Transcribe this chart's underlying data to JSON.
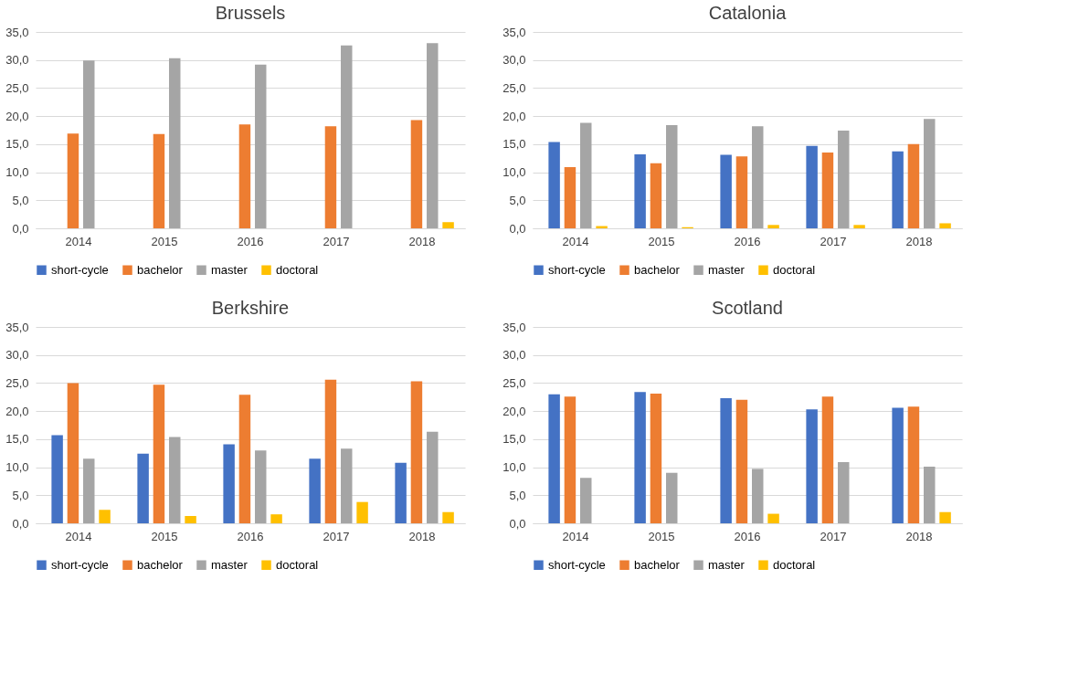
{
  "chart_data": [
    {
      "type": "bar",
      "title": "Brussels",
      "categories": [
        "2014",
        "2015",
        "2016",
        "2017",
        "2018"
      ],
      "series": [
        {
          "name": "short-cycle",
          "color": "#4472c4",
          "values": [
            null,
            null,
            null,
            null,
            null
          ]
        },
        {
          "name": "bachelor",
          "color": "#ed7d31",
          "values": [
            16.9,
            16.8,
            18.5,
            18.2,
            19.3
          ]
        },
        {
          "name": "master",
          "color": "#a5a5a5",
          "values": [
            29.9,
            30.3,
            29.2,
            32.6,
            33.0
          ]
        },
        {
          "name": "doctoral",
          "color": "#ffc000",
          "values": [
            null,
            null,
            null,
            null,
            1.1
          ]
        }
      ],
      "ylim": [
        0,
        35
      ],
      "yticks": [
        {
          "value": 0,
          "label": "0,0"
        },
        {
          "value": 5,
          "label": "5,0"
        },
        {
          "value": 10,
          "label": "10,0"
        },
        {
          "value": 15,
          "label": "15,0"
        },
        {
          "value": 20,
          "label": "20,0"
        },
        {
          "value": 25,
          "label": "25,0"
        },
        {
          "value": 30,
          "label": "30,0"
        },
        {
          "value": 35,
          "label": "35,0"
        }
      ],
      "grid": "y",
      "legend": "bottom"
    },
    {
      "type": "bar",
      "title": "Catalonia",
      "categories": [
        "2014",
        "2015",
        "2016",
        "2017",
        "2018"
      ],
      "series": [
        {
          "name": "short-cycle",
          "color": "#4472c4",
          "values": [
            15.4,
            13.2,
            13.1,
            14.7,
            13.7
          ]
        },
        {
          "name": "bachelor",
          "color": "#ed7d31",
          "values": [
            10.9,
            11.6,
            12.8,
            13.5,
            15.0
          ]
        },
        {
          "name": "master",
          "color": "#a5a5a5",
          "values": [
            18.8,
            18.4,
            18.2,
            17.4,
            19.5
          ]
        },
        {
          "name": "doctoral",
          "color": "#ffc000",
          "values": [
            0.4,
            0.2,
            0.6,
            0.6,
            0.9
          ]
        }
      ],
      "ylim": [
        0,
        35
      ],
      "yticks": [
        {
          "value": 0,
          "label": "0,0"
        },
        {
          "value": 5,
          "label": "5,0"
        },
        {
          "value": 10,
          "label": "10,0"
        },
        {
          "value": 15,
          "label": "15,0"
        },
        {
          "value": 20,
          "label": "20,0"
        },
        {
          "value": 25,
          "label": "25,0"
        },
        {
          "value": 30,
          "label": "30,0"
        },
        {
          "value": 35,
          "label": "35,0"
        }
      ],
      "grid": "y",
      "legend": "bottom"
    },
    {
      "type": "bar",
      "title": "Berkshire",
      "categories": [
        "2014",
        "2015",
        "2016",
        "2017",
        "2018"
      ],
      "series": [
        {
          "name": "short-cycle",
          "color": "#4472c4",
          "values": [
            15.7,
            12.4,
            14.1,
            11.5,
            10.8
          ]
        },
        {
          "name": "bachelor",
          "color": "#ed7d31",
          "values": [
            25.0,
            24.7,
            22.9,
            25.6,
            25.3
          ]
        },
        {
          "name": "master",
          "color": "#a5a5a5",
          "values": [
            11.5,
            15.4,
            13.0,
            13.3,
            16.3
          ]
        },
        {
          "name": "doctoral",
          "color": "#ffc000",
          "values": [
            2.4,
            1.3,
            1.6,
            3.8,
            2.0
          ]
        }
      ],
      "ylim": [
        0,
        35
      ],
      "yticks": [
        {
          "value": 0,
          "label": "0,0"
        },
        {
          "value": 5,
          "label": "5,0"
        },
        {
          "value": 10,
          "label": "10,0"
        },
        {
          "value": 15,
          "label": "15,0"
        },
        {
          "value": 20,
          "label": "20,0"
        },
        {
          "value": 25,
          "label": "25,0"
        },
        {
          "value": 30,
          "label": "30,0"
        },
        {
          "value": 35,
          "label": "35,0"
        }
      ],
      "grid": "y",
      "legend": "bottom"
    },
    {
      "type": "bar",
      "title": "Scotland",
      "categories": [
        "2014",
        "2015",
        "2016",
        "2017",
        "2018"
      ],
      "series": [
        {
          "name": "short-cycle",
          "color": "#4472c4",
          "values": [
            23.0,
            23.4,
            22.3,
            20.3,
            20.6
          ]
        },
        {
          "name": "bachelor",
          "color": "#ed7d31",
          "values": [
            22.6,
            23.1,
            22.0,
            22.6,
            20.8
          ]
        },
        {
          "name": "master",
          "color": "#a5a5a5",
          "values": [
            8.1,
            9.0,
            9.7,
            10.9,
            10.1
          ]
        },
        {
          "name": "doctoral",
          "color": "#ffc000",
          "values": [
            null,
            null,
            1.7,
            null,
            2.0
          ]
        }
      ],
      "ylim": [
        0,
        35
      ],
      "yticks": [
        {
          "value": 0,
          "label": "0,0"
        },
        {
          "value": 5,
          "label": "5,0"
        },
        {
          "value": 10,
          "label": "10,0"
        },
        {
          "value": 15,
          "label": "15,0"
        },
        {
          "value": 20,
          "label": "20,0"
        },
        {
          "value": 25,
          "label": "25,0"
        },
        {
          "value": 30,
          "label": "30,0"
        },
        {
          "value": 35,
          "label": "35,0"
        }
      ],
      "grid": "y",
      "legend": "bottom"
    }
  ]
}
